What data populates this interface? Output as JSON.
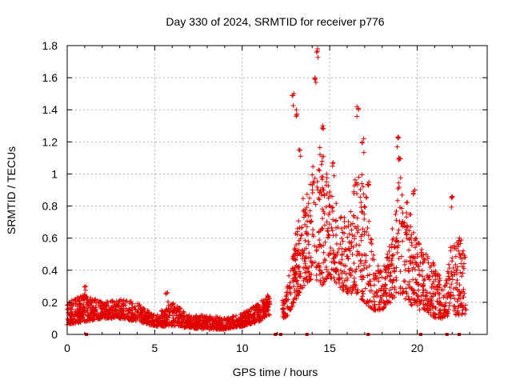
{
  "chart_data": {
    "type": "scatter",
    "title": "Day 330 of 2024, SRMTID for receiver p776",
    "xlabel": "GPS time / hours",
    "ylabel": "SRMTID / TECUs",
    "xlim": [
      0,
      24
    ],
    "ylim": [
      0,
      1.8
    ],
    "xticks": [
      0,
      5,
      10,
      15,
      20
    ],
    "yticks": [
      0,
      0.2,
      0.4,
      0.6,
      0.8,
      1,
      1.2,
      1.4,
      1.6,
      1.8
    ],
    "xtick_labels": [
      "0",
      "5",
      "10",
      "15",
      "20"
    ],
    "ytick_labels": [
      "0",
      "0.2",
      "0.4",
      "0.6",
      "0.8",
      "1",
      "1.2",
      "1.4",
      "1.6",
      "1.8"
    ],
    "grid": true,
    "marker": "+",
    "color": "#e00000",
    "envelope": {
      "description": "approximate typical SRMTID level vs hour (band of scattered points)",
      "x": [
        0,
        1,
        2,
        3,
        4,
        5,
        6,
        7,
        8,
        9,
        10,
        11,
        11.5,
        12.5,
        13,
        13.5,
        14,
        14.5,
        15,
        15.5,
        16,
        16.5,
        17,
        17.5,
        18,
        18.5,
        19,
        19.5,
        20,
        20.5,
        21,
        21.5,
        22,
        22.5,
        22.8
      ],
      "low": [
        0.06,
        0.08,
        0.1,
        0.1,
        0.08,
        0.05,
        0.05,
        0.04,
        0.03,
        0.03,
        0.05,
        0.08,
        0.12,
        0.1,
        0.2,
        0.3,
        0.35,
        0.3,
        0.35,
        0.3,
        0.25,
        0.25,
        0.2,
        0.15,
        0.15,
        0.2,
        0.25,
        0.2,
        0.15,
        0.15,
        0.1,
        0.1,
        0.12,
        0.12,
        0.12
      ],
      "high": [
        0.2,
        0.25,
        0.2,
        0.22,
        0.2,
        0.12,
        0.2,
        0.12,
        0.12,
        0.1,
        0.13,
        0.2,
        0.25,
        0.25,
        0.6,
        0.9,
        1.05,
        1.2,
        0.9,
        0.8,
        0.7,
        1.0,
        1.0,
        0.5,
        0.4,
        0.6,
        1.0,
        0.8,
        0.6,
        0.5,
        0.45,
        0.3,
        0.6,
        0.6,
        0.5
      ]
    },
    "peaks": [
      {
        "x": 1.0,
        "y": 0.3
      },
      {
        "x": 5.7,
        "y": 0.26
      },
      {
        "x": 12.9,
        "y": 1.5
      },
      {
        "x": 13.3,
        "y": 1.15
      },
      {
        "x": 14.3,
        "y": 1.78
      },
      {
        "x": 14.2,
        "y": 1.6
      },
      {
        "x": 14.6,
        "y": 1.3
      },
      {
        "x": 15.2,
        "y": 1.07
      },
      {
        "x": 16.6,
        "y": 1.42
      },
      {
        "x": 16.9,
        "y": 1.22
      },
      {
        "x": 18.9,
        "y": 1.23
      },
      {
        "x": 19.0,
        "y": 1.1
      },
      {
        "x": 19.8,
        "y": 0.9
      },
      {
        "x": 22.0,
        "y": 0.86
      },
      {
        "x": 22.4,
        "y": 0.6
      },
      {
        "x": 13.1,
        "y": 1.4
      },
      {
        "x": 14.8,
        "y": 1.0
      },
      {
        "x": 17.2,
        "y": 0.95
      }
    ],
    "zero_markers_x": [
      1.1,
      11.9,
      12.2,
      13.7,
      17.2,
      20.2,
      21.7,
      22.4
    ]
  }
}
